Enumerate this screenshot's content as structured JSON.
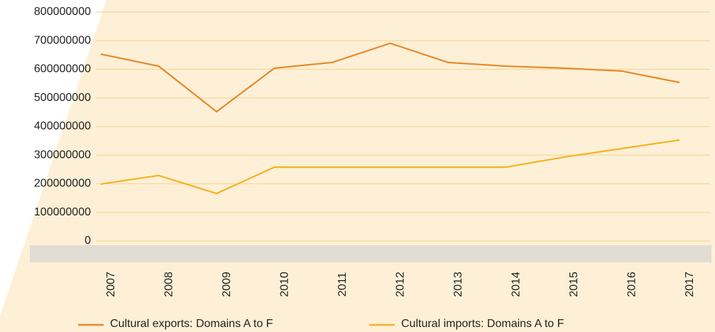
{
  "chart_data": {
    "type": "line",
    "categories": [
      "2007",
      "2008",
      "2009",
      "2010",
      "2011",
      "2012",
      "2013",
      "2014",
      "2015",
      "2016",
      "2017"
    ],
    "series": [
      {
        "name": "Cultural exports: Domains A to F",
        "color": "#e8892b",
        "values": [
          653000000,
          611000000,
          452000000,
          604000000,
          624000000,
          691000000,
          624000000,
          611000000,
          604000000,
          594000000,
          554000000
        ]
      },
      {
        "name": "Cultural imports: Domains A to F",
        "color": "#f5b324",
        "values": [
          199000000,
          229000000,
          166000000,
          258000000,
          258000000,
          258000000,
          258000000,
          258000000,
          293000000,
          323000000,
          353000000
        ]
      }
    ],
    "ylim": [
      0,
      800000000
    ],
    "yticks": [
      0,
      100000000,
      200000000,
      300000000,
      400000000,
      500000000,
      600000000,
      700000000,
      800000000
    ],
    "grid": true,
    "legend": "bottom"
  }
}
